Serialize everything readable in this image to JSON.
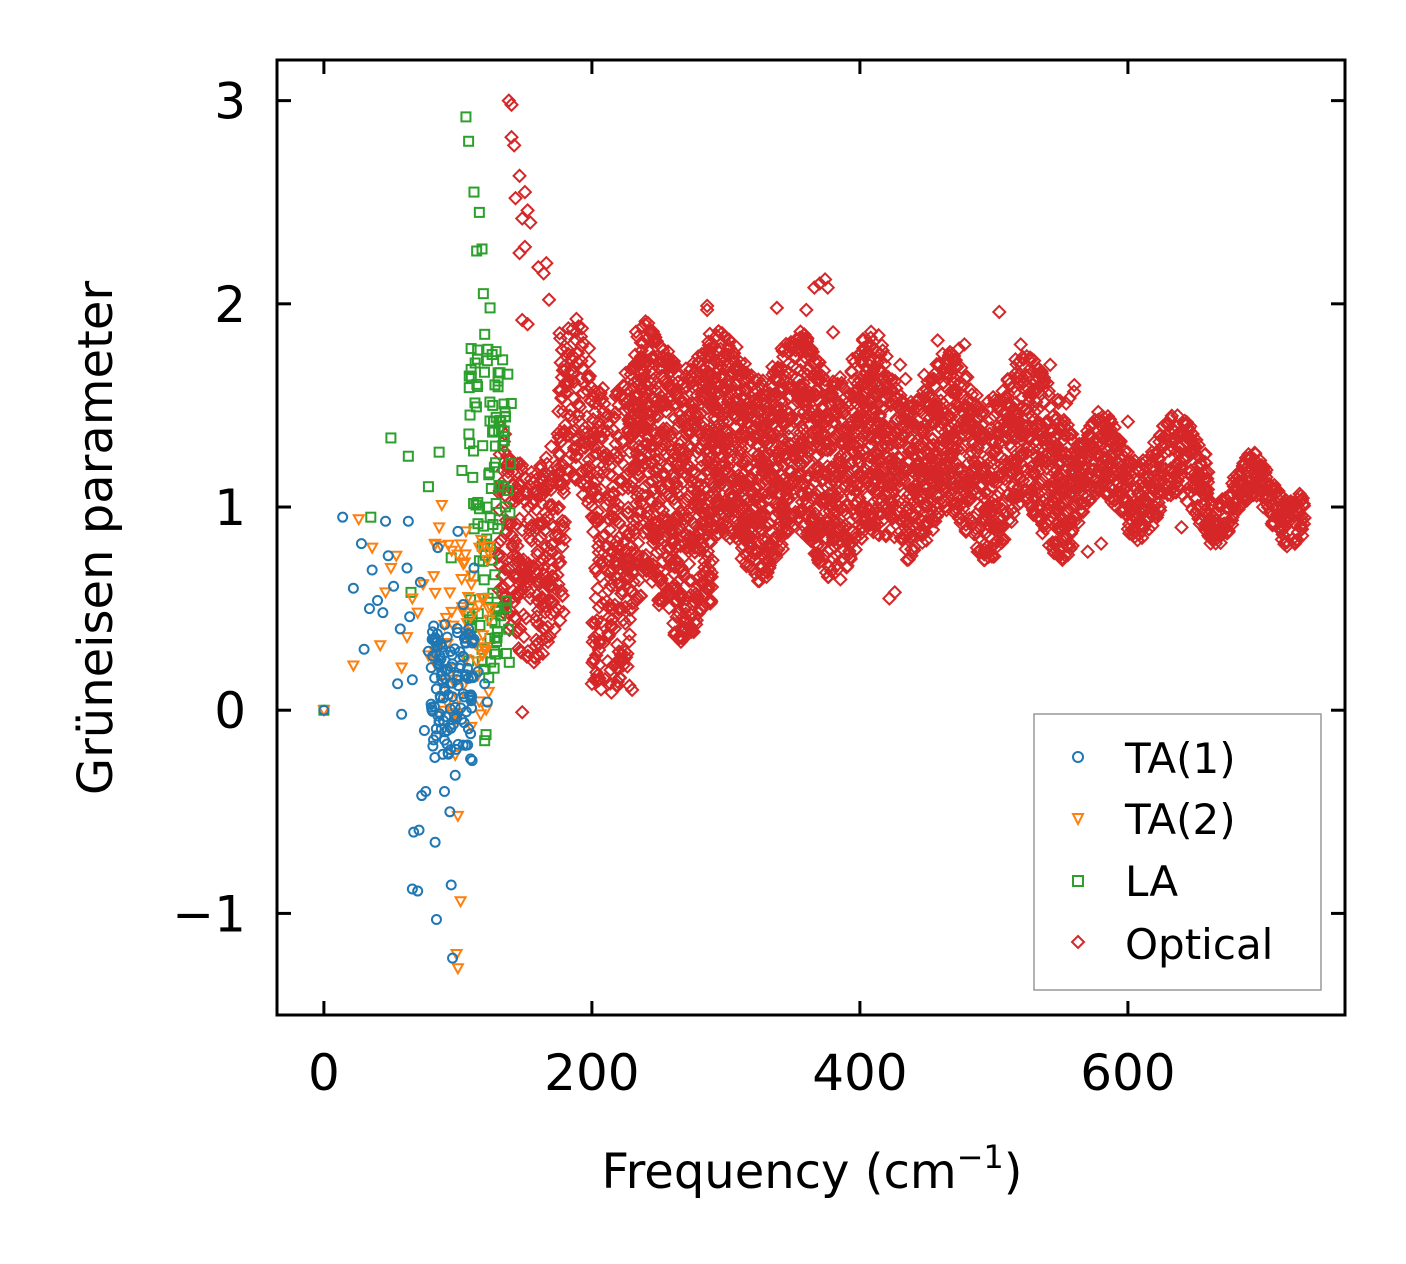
{
  "chart_data": {
    "type": "scatter",
    "title": "",
    "xlabel": "Frequency (cm",
    "xlabel_superscript": "−1",
    "xlabel_suffix": ")",
    "ylabel": "Grüneisen parameter",
    "xlim": [
      -35,
      762
    ],
    "ylim": [
      -1.5,
      3.2
    ],
    "xticks": [
      0,
      200,
      400,
      600
    ],
    "xtick_labels": [
      "0",
      "200",
      "400",
      "600"
    ],
    "yticks": [
      -1,
      0,
      1,
      2,
      3
    ],
    "ytick_labels": [
      "−1",
      "0",
      "1",
      "2",
      "3"
    ],
    "legend_position": "lower-right",
    "series": [
      {
        "name": "TA(1)",
        "marker": "circle",
        "color": "#1f77b4",
        "points": [
          [
            0,
            0
          ],
          [
            14,
            0.95
          ],
          [
            22,
            0.6
          ],
          [
            28,
            0.82
          ],
          [
            30,
            0.3
          ],
          [
            34,
            0.5
          ],
          [
            36,
            0.69
          ],
          [
            40,
            0.54
          ],
          [
            44,
            0.48
          ],
          [
            46,
            0.93
          ],
          [
            48,
            0.76
          ],
          [
            52,
            0.61
          ],
          [
            55,
            0.13
          ],
          [
            57,
            0.4
          ],
          [
            58,
            -0.02
          ],
          [
            62,
            0.7
          ],
          [
            63,
            0.93
          ],
          [
            64,
            0.46
          ],
          [
            66,
            0.15
          ],
          [
            66,
            -0.88
          ],
          [
            67,
            -0.6
          ],
          [
            70,
            -0.89
          ],
          [
            71,
            -0.59
          ],
          [
            72,
            0.63
          ],
          [
            73,
            -0.42
          ],
          [
            75,
            -0.1
          ],
          [
            76,
            -0.4
          ],
          [
            78,
            0.29
          ],
          [
            80,
            0.03
          ],
          [
            83,
            -0.65
          ],
          [
            84,
            -1.03
          ],
          [
            85,
            0.8
          ],
          [
            86,
            0.22
          ],
          [
            88,
            0.15
          ],
          [
            90,
            -0.4
          ],
          [
            92,
            0.36
          ],
          [
            94,
            -0.5
          ],
          [
            95,
            -0.86
          ],
          [
            96,
            -1.22
          ],
          [
            98,
            -0.32
          ],
          [
            100,
            0.88
          ],
          [
            102,
            0.22
          ],
          [
            104,
            0.52
          ],
          [
            106,
            0.33
          ],
          [
            108,
            0.4
          ],
          [
            110,
            0.05
          ],
          [
            112,
            0.7
          ],
          [
            115,
            0.19
          ],
          [
            120,
            0.13
          ],
          [
            122,
            0.04
          ]
        ],
        "dense_region": {
          "x": [
            80,
            112
          ],
          "y": [
            -0.25,
            0.45
          ],
          "count": 120
        }
      },
      {
        "name": "TA(2)",
        "marker": "triangle-down",
        "color": "#ff7f0e",
        "points": [
          [
            0,
            0
          ],
          [
            22,
            0.22
          ],
          [
            26,
            0.94
          ],
          [
            36,
            0.8
          ],
          [
            42,
            0.32
          ],
          [
            46,
            0.58
          ],
          [
            50,
            0.7
          ],
          [
            54,
            0.76
          ],
          [
            58,
            0.21
          ],
          [
            62,
            0.36
          ],
          [
            66,
            0.55
          ],
          [
            70,
            0.48
          ],
          [
            74,
            0.62
          ],
          [
            78,
            0.27
          ],
          [
            82,
            0.66
          ],
          [
            86,
            0.9
          ],
          [
            88,
            1.01
          ],
          [
            90,
            0.42
          ],
          [
            94,
            0.58
          ],
          [
            96,
            0.15
          ],
          [
            98,
            -0.22
          ],
          [
            99,
            -1.2
          ],
          [
            100,
            -1.27
          ],
          [
            100,
            -0.52
          ],
          [
            102,
            -0.94
          ],
          [
            104,
            0.72
          ],
          [
            106,
            0.88
          ],
          [
            108,
            0.35
          ],
          [
            110,
            0.62
          ],
          [
            112,
            0.48
          ],
          [
            114,
            0.24
          ],
          [
            116,
            0.8
          ],
          [
            118,
            0.55
          ],
          [
            120,
            0.31
          ],
          [
            122,
            0.74
          ],
          [
            125,
            0.5
          ]
        ],
        "dense_region": {
          "x": [
            82,
            124
          ],
          "y": [
            -0.1,
            0.9
          ],
          "count": 60
        }
      },
      {
        "name": "LA",
        "marker": "square",
        "color": "#2ca02c",
        "points": [
          [
            0,
            0
          ],
          [
            35,
            0.95
          ],
          [
            50,
            1.34
          ],
          [
            63,
            1.25
          ],
          [
            65,
            0.58
          ],
          [
            78,
            1.1
          ],
          [
            86,
            1.27
          ],
          [
            95,
            0.75
          ],
          [
            103,
            1.18
          ],
          [
            106,
            2.92
          ],
          [
            108,
            2.8
          ],
          [
            110,
            1.64
          ],
          [
            112,
            2.55
          ],
          [
            114,
            2.26
          ],
          [
            116,
            2.45
          ],
          [
            118,
            2.27
          ],
          [
            119,
            2.05
          ],
          [
            120,
            1.85
          ],
          [
            122,
            1.72
          ],
          [
            124,
            1.98
          ],
          [
            126,
            1.5
          ],
          [
            128,
            1.3
          ],
          [
            130,
            1.62
          ],
          [
            132,
            1.42
          ],
          [
            134,
            1.1
          ],
          [
            120,
            -0.15
          ],
          [
            118,
            0.3
          ],
          [
            121,
            -0.12
          ],
          [
            123,
            0.16
          ]
        ],
        "dense_region": {
          "x": [
            108,
            140
          ],
          "y": [
            0.2,
            1.8
          ],
          "count": 110
        }
      },
      {
        "name": "Optical",
        "marker": "diamond",
        "color": "#d62728",
        "points": [
          [
            138,
            3.0
          ],
          [
            140,
            2.98
          ],
          [
            140,
            2.82
          ],
          [
            142,
            2.78
          ],
          [
            143,
            2.52
          ],
          [
            146,
            2.63
          ],
          [
            148,
            2.42
          ],
          [
            150,
            2.55
          ],
          [
            152,
            2.46
          ],
          [
            154,
            2.4
          ],
          [
            146,
            2.25
          ],
          [
            150,
            2.28
          ],
          [
            160,
            2.18
          ],
          [
            164,
            2.15
          ],
          [
            166,
            2.2
          ],
          [
            148,
            1.92
          ],
          [
            152,
            1.9
          ],
          [
            168,
            2.02
          ],
          [
            148,
            -0.01
          ],
          [
            154,
            0.55
          ],
          [
            200,
            0.13
          ],
          [
            202,
            0.15
          ],
          [
            228,
            0.12
          ],
          [
            230,
            0.1
          ],
          [
            286,
            1.97
          ],
          [
            286,
            1.99
          ],
          [
            338,
            1.98
          ],
          [
            360,
            1.97
          ],
          [
            366,
            2.08
          ],
          [
            370,
            2.1
          ],
          [
            374,
            2.12
          ],
          [
            376,
            2.08
          ],
          [
            380,
            1.86
          ],
          [
            422,
            0.55
          ],
          [
            426,
            0.58
          ],
          [
            430,
            1.7
          ],
          [
            434,
            1.63
          ],
          [
            448,
            1.65
          ],
          [
            458,
            1.82
          ],
          [
            474,
            1.78
          ],
          [
            478,
            1.8
          ],
          [
            504,
            1.96
          ],
          [
            520,
            1.8
          ],
          [
            530,
            1.72
          ],
          [
            542,
            1.7
          ],
          [
            560,
            1.6
          ],
          [
            570,
            0.78
          ],
          [
            580,
            0.82
          ],
          [
            600,
            1.42
          ],
          [
            622,
            0.96
          ],
          [
            640,
            0.9
          ],
          [
            660,
            0.86
          ],
          [
            700,
            1.05
          ],
          [
            720,
            0.98
          ],
          [
            730,
            0.94
          ]
        ],
        "bands": [
          {
            "x": [
              130,
              180
            ],
            "ymin": 0.35,
            "ymax": 1.3,
            "count": 300
          },
          {
            "x": [
              175,
              200
            ],
            "ymin": 1.0,
            "ymax": 1.85,
            "count": 120
          },
          {
            "x": [
              200,
              230
            ],
            "ymin": 0.2,
            "ymax": 1.7,
            "count": 280
          },
          {
            "x": [
              230,
              290
            ],
            "ymin": 0.45,
            "ymax": 1.8,
            "count": 700
          },
          {
            "x": [
              290,
              420
            ],
            "ymin": 0.75,
            "ymax": 1.75,
            "count": 1300
          },
          {
            "x": [
              420,
              560
            ],
            "ymin": 0.85,
            "ymax": 1.65,
            "count": 1100
          },
          {
            "x": [
              560,
              660
            ],
            "ymin": 0.95,
            "ymax": 1.35,
            "count": 500
          },
          {
            "x": [
              660,
              732
            ],
            "ymin": 0.92,
            "ymax": 1.15,
            "count": 260
          }
        ]
      }
    ]
  }
}
